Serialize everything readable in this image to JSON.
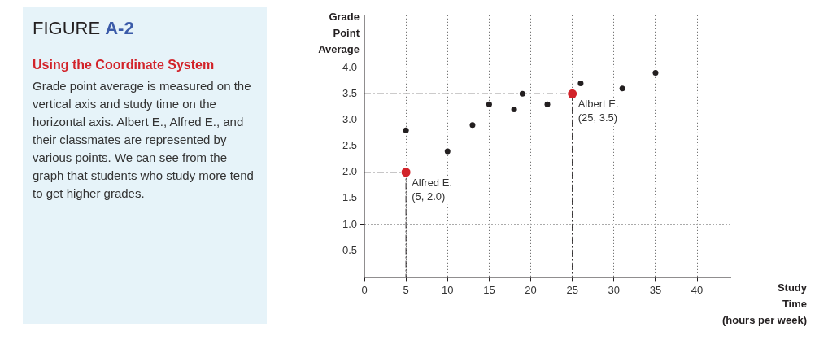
{
  "chart_data": {
    "type": "scatter",
    "title": "FIGURE A-2",
    "subtitle": "Using the Coordinate System",
    "xlabel": "Study Time (hours per week)",
    "ylabel": "Grade Point Average",
    "annotations": [
      "Grade point average is measured on the vertical axis and study time on the horizontal axis. Albert E., Alfred E., and their classmates are represented by various points. We can see from the graph that students who study more tend to get higher grades.",
      {
        "text": "Alfred E. (5, 2.0)",
        "x": 5,
        "y": 2.0
      },
      {
        "text": "Albert E. (25, 3.5)",
        "x": 25,
        "y": 3.5
      }
    ],
    "series": [
      {
        "color": "#231f20",
        "x": [
          5,
          10,
          13,
          15,
          18,
          19,
          22,
          26,
          31,
          35
        ],
        "values": [
          2.8,
          2.4,
          2.9,
          3.3,
          3.2,
          3.5,
          3.3,
          3.7,
          3.6,
          3.9
        ]
      },
      {
        "color": "#d2232a",
        "x": [
          5,
          25
        ],
        "values": [
          2.0,
          3.5
        ]
      },
      {
        "type": "line",
        "line_style": "dashed",
        "marker": "none",
        "color": "#231f20",
        "x": [
          0,
          5,
          5
        ],
        "values": [
          2.0,
          2.0,
          0
        ]
      },
      {
        "type": "line",
        "line_style": "dashed",
        "marker": "none",
        "color": "#231f20",
        "x": [
          0,
          25,
          25
        ],
        "values": [
          3.5,
          3.5,
          0
        ]
      }
    ],
    "xlim": [
      0,
      44
    ],
    "xticks": [
      {
        "value": 0,
        "label": "0"
      },
      5,
      10,
      15,
      20,
      25,
      30,
      35,
      40
    ],
    "ylim": [
      0,
      5
    ],
    "yticks": [
      {
        "value": 0,
        "label": null
      },
      0.5,
      {
        "value": 1,
        "label": "1.0"
      },
      1.5,
      {
        "value": 2,
        "label": "2.0"
      },
      2.5,
      {
        "value": 3,
        "label": "3.0"
      },
      3.5,
      {
        "value": 4,
        "label": "4.0"
      },
      {
        "value": 4.5,
        "label": null
      },
      {
        "value": 5,
        "label": null
      }
    ],
    "grid": true,
    "marker": "circle",
    "legend": false
  }
}
